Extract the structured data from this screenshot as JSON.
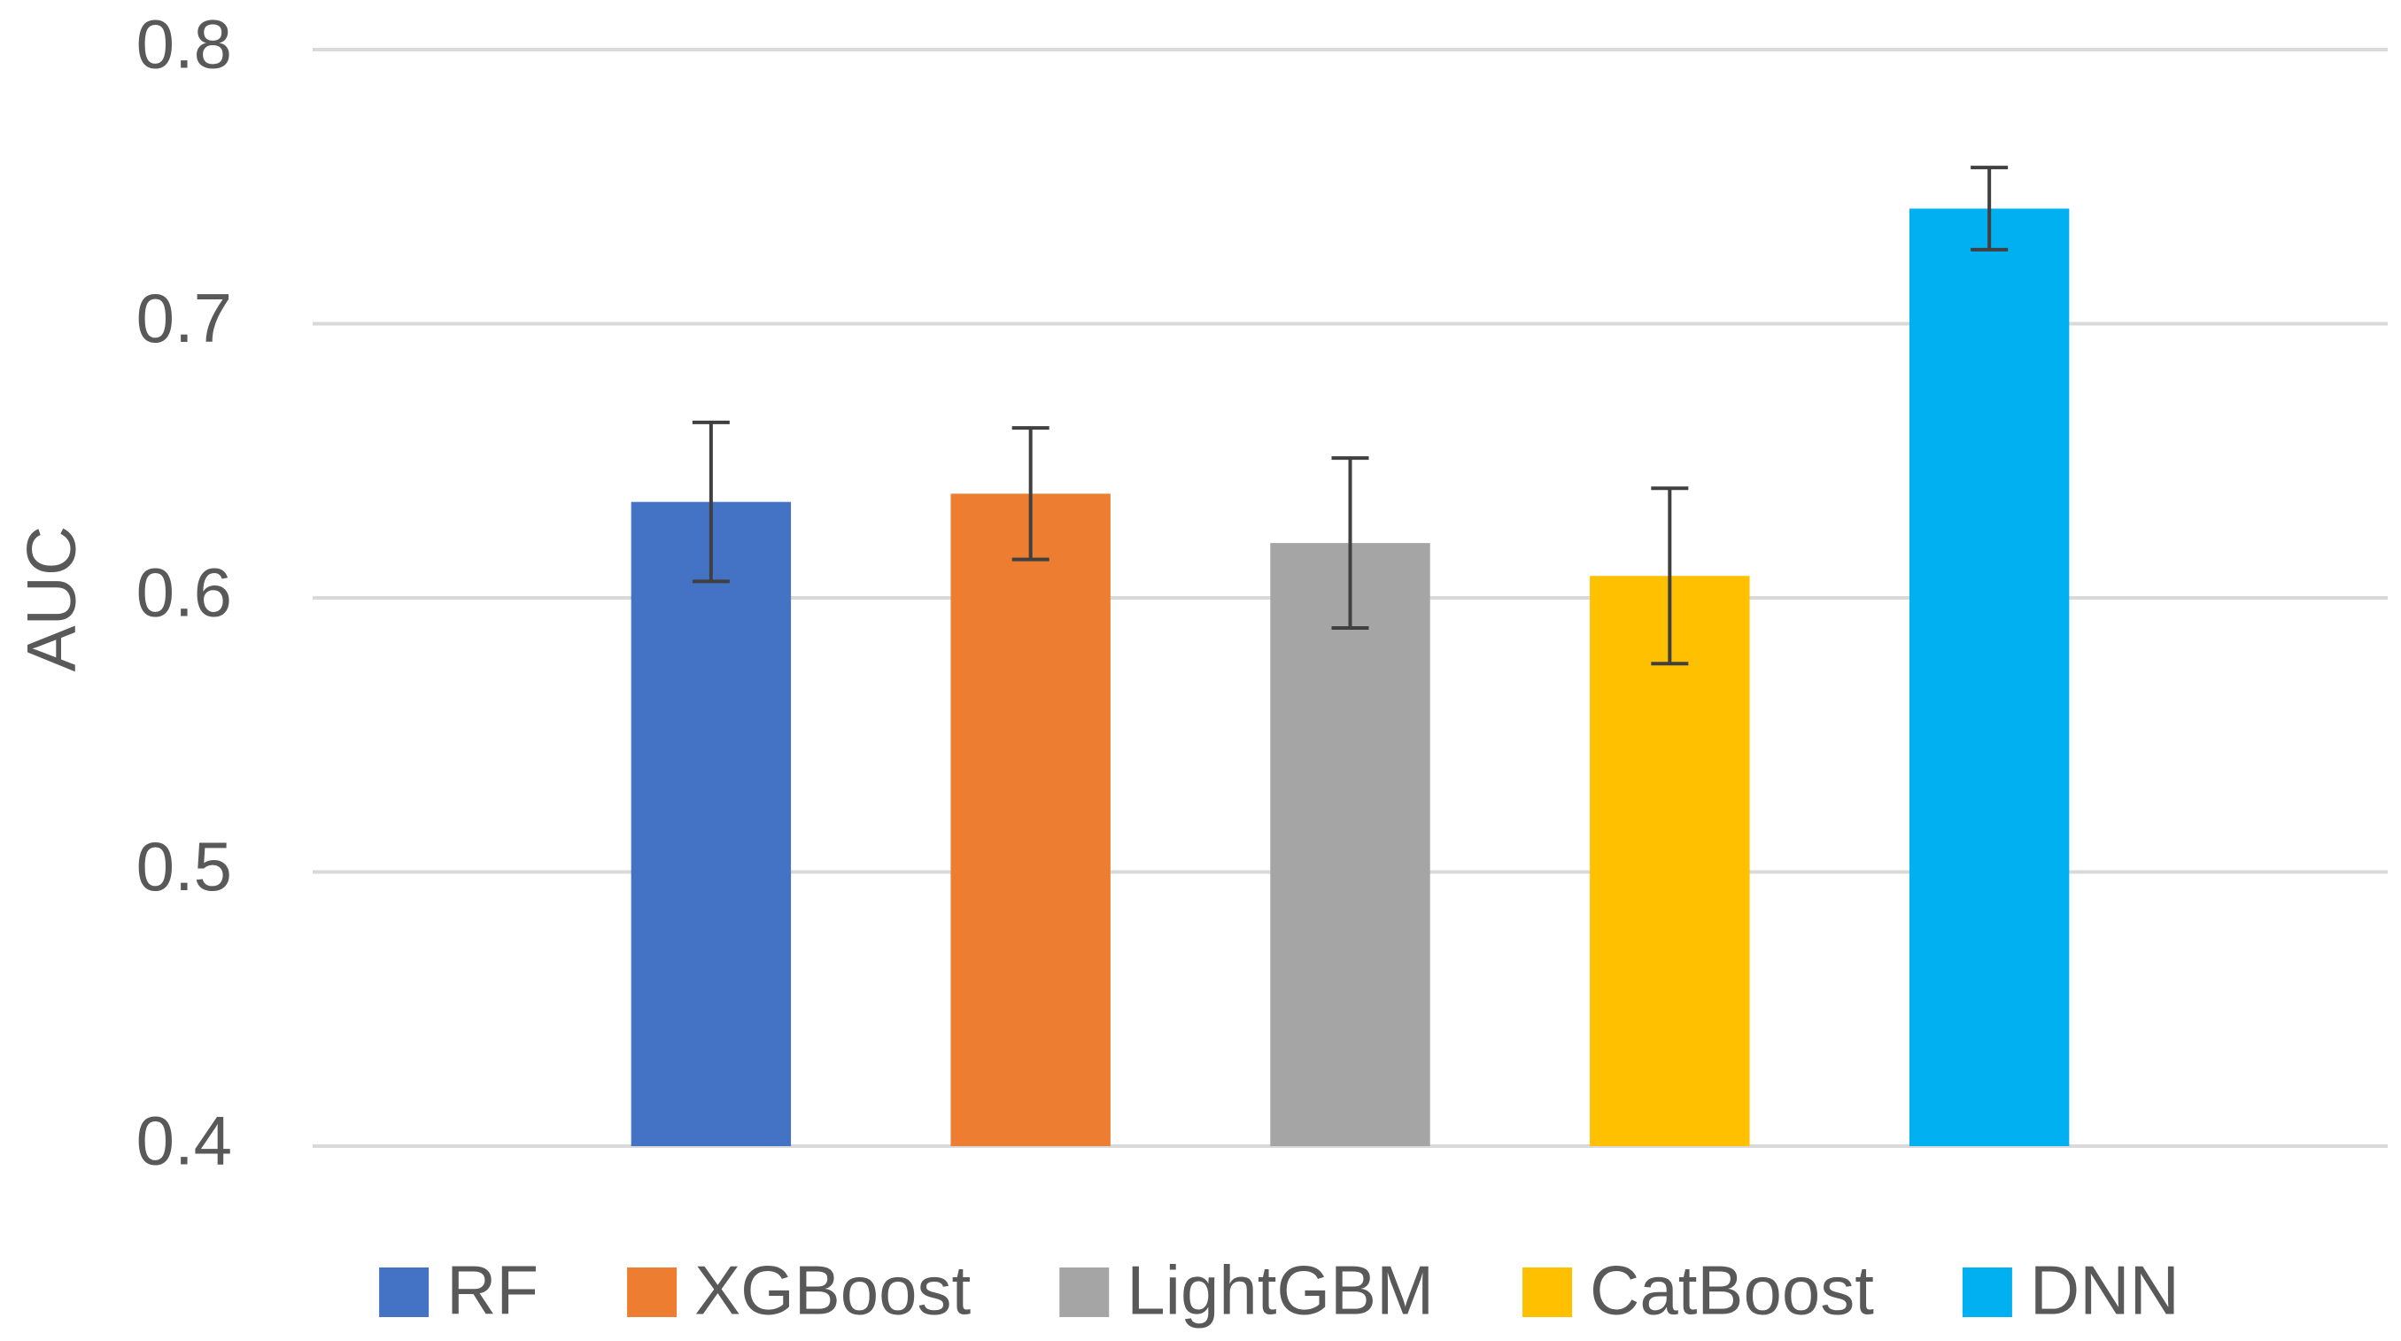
{
  "chart_data": {
    "type": "bar",
    "y_label": "AUC",
    "ylim": [
      0.4,
      0.8
    ],
    "yticks": [
      0.4,
      0.5,
      0.6,
      0.7,
      0.8
    ],
    "grid": true,
    "legend": "bottom",
    "series": [
      {
        "name": "RF",
        "color": "#4472c4",
        "values": [
          0.635
        ],
        "errors": [
          0.029
        ]
      },
      {
        "name": "XGBoost",
        "color": "#ed7d31",
        "values": [
          0.638
        ],
        "errors": [
          0.024
        ]
      },
      {
        "name": "LightGBM",
        "color": "#a5a5a5",
        "values": [
          0.62
        ],
        "errors": [
          0.031
        ]
      },
      {
        "name": "CatBoost",
        "color": "#ffc000",
        "values": [
          0.608
        ],
        "errors": [
          0.032
        ]
      },
      {
        "name": "DNN",
        "color": "#00b0f0",
        "values": [
          0.742
        ],
        "errors": [
          0.015
        ]
      }
    ]
  }
}
